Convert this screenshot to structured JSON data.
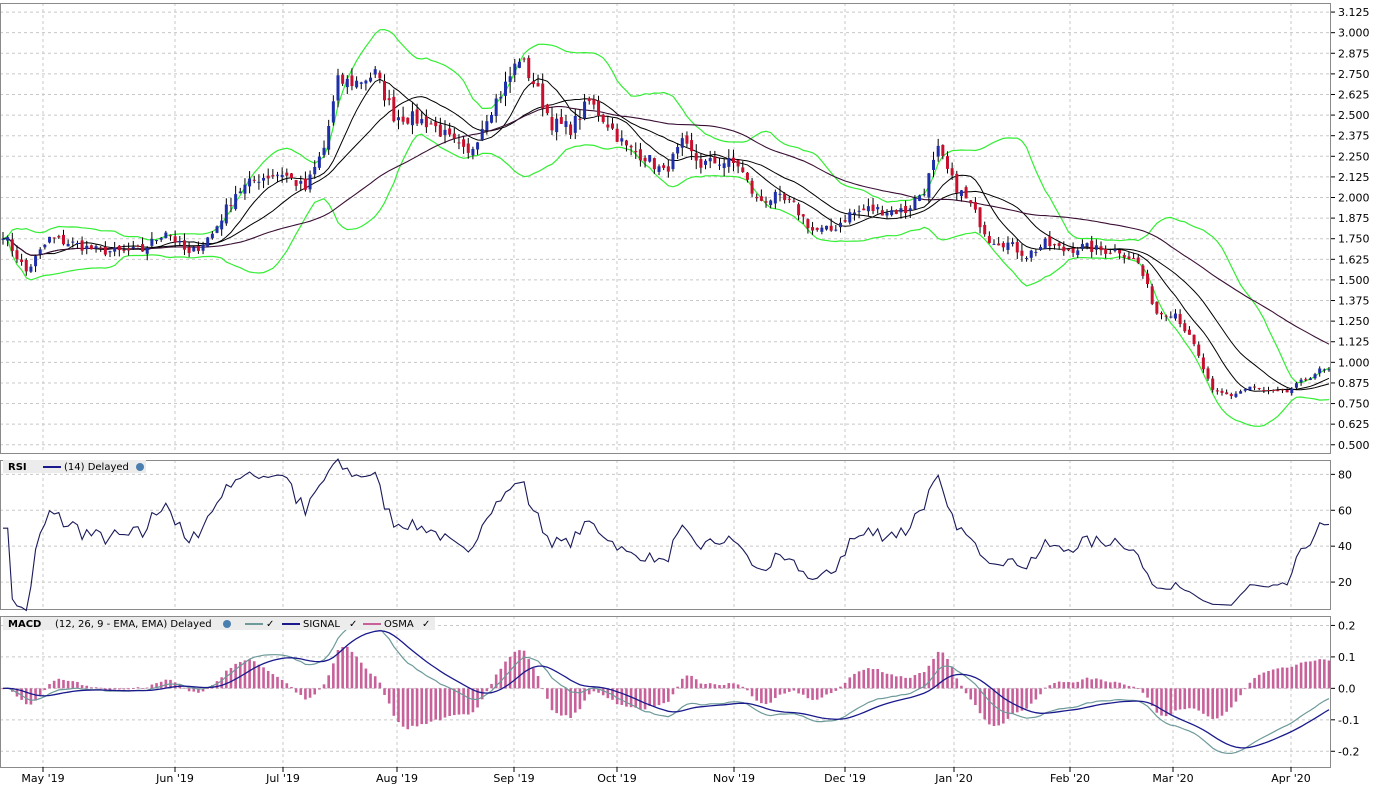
{
  "chart_data": [
    {
      "type": "candlestick",
      "name": "price",
      "ylim": [
        0.45,
        3.18
      ],
      "yticks": [
        "3.125",
        "3.000",
        "2.875",
        "2.750",
        "2.625",
        "2.500",
        "2.375",
        "2.250",
        "2.125",
        "2.000",
        "1.875",
        "1.750",
        "1.625",
        "1.500",
        "1.375",
        "1.250",
        "1.125",
        "1.000",
        "0.875",
        "0.750",
        "0.625",
        "0.500"
      ],
      "x_months": [
        "May '19",
        "Jun '19",
        "Jul '19",
        "Aug '19",
        "Sep '19",
        "Oct '19",
        "Nov '19",
        "Dec '19",
        "Jan '20",
        "Feb '20",
        "Mar '20",
        "Apr '20"
      ],
      "close_anchors": [
        [
          0,
          1.78
        ],
        [
          5,
          1.55
        ],
        [
          10,
          1.75
        ],
        [
          15,
          1.72
        ],
        [
          20,
          1.68
        ],
        [
          25,
          1.67
        ],
        [
          30,
          1.68
        ],
        [
          35,
          1.8
        ],
        [
          40,
          1.65
        ],
        [
          45,
          1.78
        ],
        [
          50,
          2.03
        ],
        [
          55,
          2.12
        ],
        [
          60,
          2.15
        ],
        [
          65,
          2.05
        ],
        [
          69,
          2.3
        ],
        [
          72,
          2.7
        ],
        [
          76,
          2.7
        ],
        [
          80,
          2.75
        ],
        [
          84,
          2.5
        ],
        [
          88,
          2.48
        ],
        [
          92,
          2.45
        ],
        [
          96,
          2.35
        ],
        [
          100,
          2.25
        ],
        [
          104,
          2.5
        ],
        [
          108,
          2.68
        ],
        [
          111,
          2.85
        ],
        [
          114,
          2.7
        ],
        [
          118,
          2.45
        ],
        [
          122,
          2.42
        ],
        [
          126,
          2.58
        ],
        [
          130,
          2.45
        ],
        [
          134,
          2.3
        ],
        [
          138,
          2.25
        ],
        [
          142,
          2.15
        ],
        [
          146,
          2.32
        ],
        [
          150,
          2.2
        ],
        [
          154,
          2.22
        ],
        [
          158,
          2.2
        ],
        [
          162,
          1.98
        ],
        [
          166,
          2.0
        ],
        [
          170,
          1.95
        ],
        [
          174,
          1.8
        ],
        [
          178,
          1.8
        ],
        [
          182,
          1.9
        ],
        [
          186,
          1.93
        ],
        [
          190,
          1.92
        ],
        [
          194,
          1.92
        ],
        [
          198,
          2.05
        ],
        [
          201,
          2.28
        ],
        [
          204,
          2.1
        ],
        [
          208,
          1.95
        ],
        [
          212,
          1.75
        ],
        [
          216,
          1.72
        ],
        [
          220,
          1.65
        ],
        [
          224,
          1.72
        ],
        [
          228,
          1.68
        ],
        [
          232,
          1.7
        ],
        [
          236,
          1.68
        ],
        [
          240,
          1.68
        ],
        [
          244,
          1.6
        ],
        [
          248,
          1.3
        ],
        [
          252,
          1.3
        ],
        [
          256,
          1.1
        ],
        [
          260,
          0.82
        ],
        [
          264,
          0.8
        ],
        [
          268,
          0.85
        ],
        [
          272,
          0.82
        ],
        [
          276,
          0.82
        ],
        [
          280,
          0.9
        ],
        [
          283,
          0.95
        ]
      ],
      "bollinger": {
        "period": 20
      },
      "moving_averages": [
        10,
        20,
        50
      ],
      "colors": {
        "up": "#1f2fa8",
        "down": "#c8102e",
        "bollinger": "#33ee33",
        "ma_fast": "#000000",
        "ma_slow": "#3a1035"
      }
    },
    {
      "type": "line",
      "name": "RSI",
      "ylim": [
        5,
        88
      ],
      "yticks": [
        "80",
        "60",
        "40",
        "20"
      ]
    },
    {
      "type": "bar+line",
      "name": "MACD",
      "ylim": [
        -0.25,
        0.23
      ],
      "yticks": [
        "0.2",
        "0.1",
        "0.0",
        "-0.1",
        "-0.2"
      ],
      "series": [
        {
          "name": "MACD",
          "color": "#6e9a9a"
        },
        {
          "name": "SIGNAL",
          "color": "#1a1a8c"
        },
        {
          "name": "OSMA",
          "color": "#c8609a"
        }
      ]
    }
  ],
  "legends": {
    "rsi": {
      "label": "RSI",
      "params": "(14) Delayed"
    },
    "macd": {
      "label": "MACD",
      "params": "(12, 26, 9 - EMA, EMA) Delayed",
      "signal": "SIGNAL",
      "osma": "OSMA"
    }
  }
}
